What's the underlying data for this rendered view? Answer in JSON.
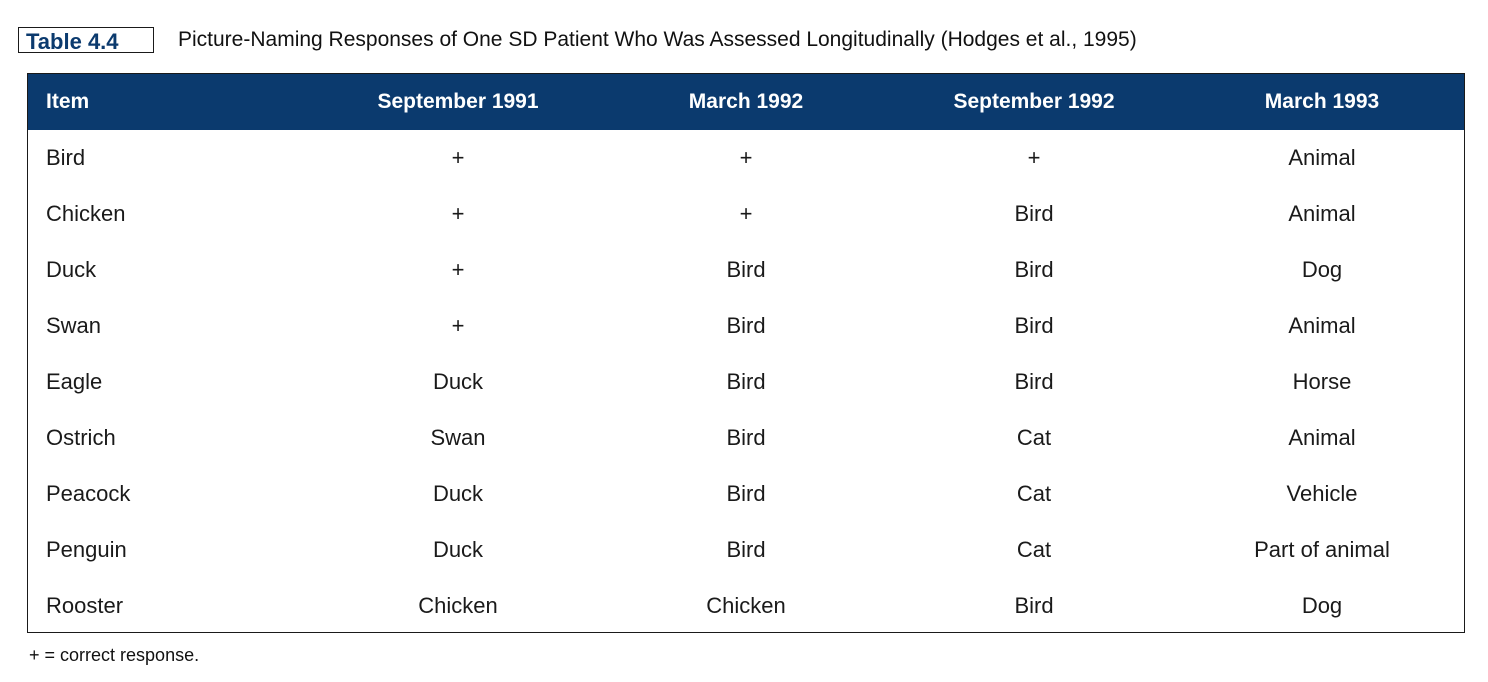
{
  "caption": {
    "label": "Table 4.4",
    "title": "Picture-Naming Responses of One SD Patient Who Was Assessed Longitudinally (Hodges et al., 1995)"
  },
  "table": {
    "headers": [
      "Item",
      "September 1991",
      "March 1992",
      "September 1992",
      "March 1993"
    ],
    "rows": [
      [
        "Bird",
        "+",
        "+",
        "+",
        "Animal"
      ],
      [
        "Chicken",
        "+",
        "+",
        "Bird",
        "Animal"
      ],
      [
        "Duck",
        "+",
        "Bird",
        "Bird",
        "Dog"
      ],
      [
        "Swan",
        "+",
        "Bird",
        "Bird",
        "Animal"
      ],
      [
        "Eagle",
        "Duck",
        "Bird",
        "Bird",
        "Horse"
      ],
      [
        "Ostrich",
        "Swan",
        "Bird",
        "Cat",
        "Animal"
      ],
      [
        "Peacock",
        "Duck",
        "Bird",
        "Cat",
        "Vehicle"
      ],
      [
        "Penguin",
        "Duck",
        "Bird",
        "Cat",
        "Part of animal"
      ],
      [
        "Rooster",
        "Chicken",
        "Chicken",
        "Bird",
        "Dog"
      ]
    ]
  },
  "footnote": "+ = correct response.",
  "colors": {
    "header_bg": "#0b3a6e",
    "header_text": "#ffffff",
    "label_text": "#0b3a6e"
  }
}
